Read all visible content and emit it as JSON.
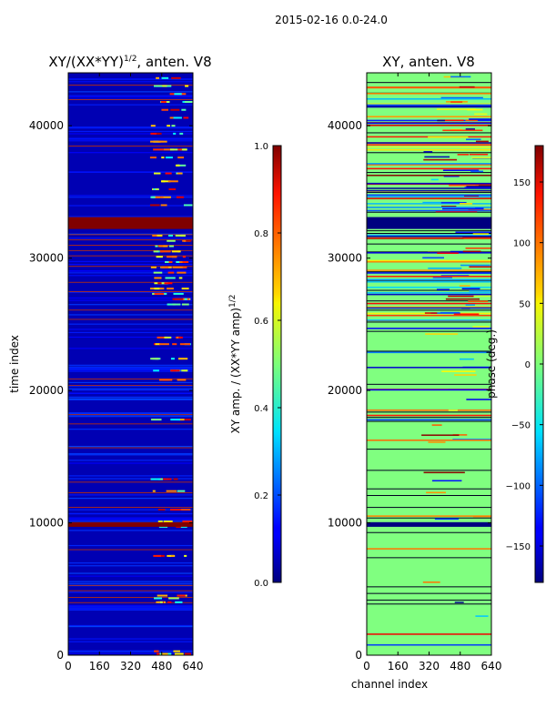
{
  "suptitle": "2015-02-16 0.0-24.0",
  "chart_data": [
    {
      "type": "heatmap",
      "title_main": "XY/(XX*YY)",
      "title_sup": "1/2",
      "title_rest": ", anten. V8",
      "xlabel": "",
      "ylabel": "time index",
      "xlim": [
        0,
        640
      ],
      "ylim": [
        0,
        44000
      ],
      "xticks": [
        0,
        160,
        320,
        480,
        640
      ],
      "yticks": [
        0,
        10000,
        20000,
        30000,
        40000
      ],
      "colorbar": {
        "label_main": "XY amp. / (XX*YY amp)",
        "label_sup": "1/2",
        "range": [
          0.0,
          1.0
        ],
        "ticks": [
          "0.0",
          "0.2",
          "0.4",
          "0.6",
          "0.8",
          "1.0"
        ],
        "colormap": "jet"
      },
      "background_value": 0.05,
      "full_rows": [
        {
          "t": 9700,
          "h": 350,
          "value": 1.0
        },
        {
          "t": 32200,
          "h": 900,
          "value": 1.0
        }
      ],
      "hot_band_channels": [
        420,
        600
      ]
    },
    {
      "type": "heatmap",
      "title_main": "XY, anten. V8",
      "xlabel": "channel index",
      "ylabel": "",
      "xlim": [
        0,
        640
      ],
      "ylim": [
        0,
        44000
      ],
      "xticks": [
        0,
        160,
        320,
        480,
        640
      ],
      "yticks": [
        0,
        10000,
        20000,
        30000,
        40000
      ],
      "colorbar": {
        "label": "phase (deg.)",
        "range": [
          -180,
          180
        ],
        "ticks": [
          "150",
          "100",
          "50",
          "0",
          "−50",
          "−100",
          "−150"
        ],
        "colormap": "jet"
      },
      "background_value_deg": 0,
      "full_rows": [
        {
          "t": 9700,
          "h": 350,
          "value_deg": -180
        },
        {
          "t": 32200,
          "h": 900,
          "value_deg": -180
        }
      ]
    }
  ]
}
